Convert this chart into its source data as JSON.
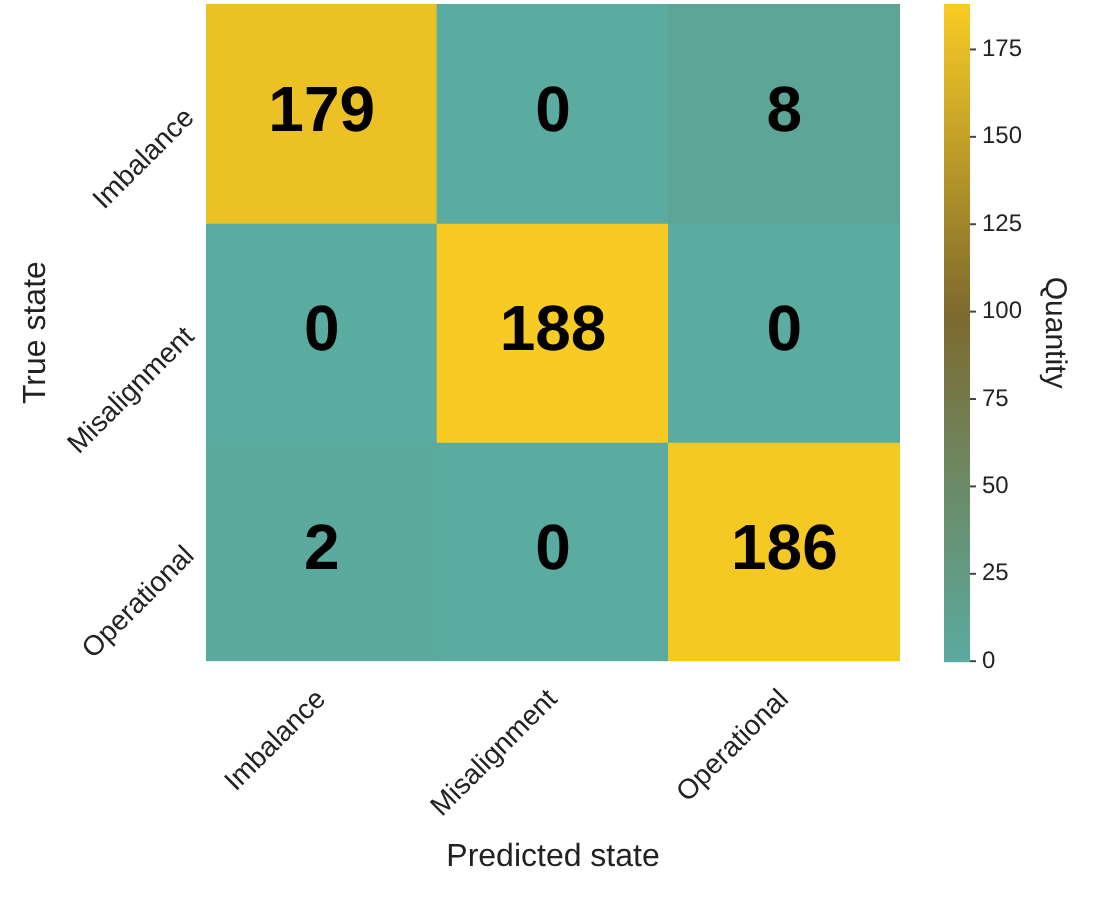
{
  "chart_data": {
    "type": "heatmap",
    "xlabel": "Predicted state",
    "ylabel": "True state",
    "clabel": "Quantity",
    "categories": [
      "Imbalance",
      "Misalignment",
      "Operational"
    ],
    "y_categories": [
      "Imbalance",
      "Misalignment",
      "Operational"
    ],
    "cells": [
      [
        179,
        0,
        8
      ],
      [
        0,
        188,
        0
      ],
      [
        2,
        0,
        186
      ]
    ],
    "clim": [
      0,
      188
    ],
    "cticks": [
      0,
      25,
      50,
      75,
      100,
      125,
      150,
      175
    ],
    "data_labels": true
  }
}
